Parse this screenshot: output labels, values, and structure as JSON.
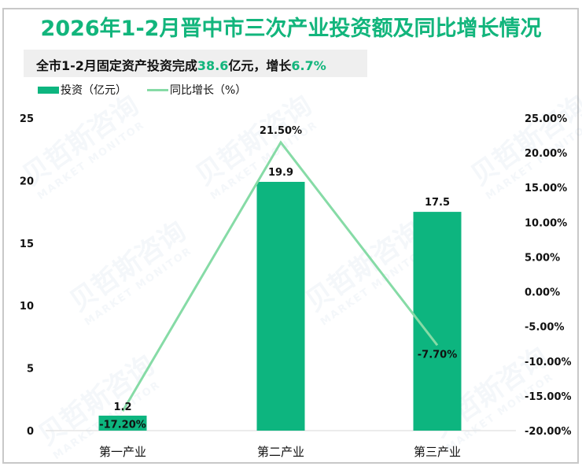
{
  "title": "2026年1-2月晋中市三次产业投资额及同比增长情况",
  "subtitle": {
    "prefix": "全市1-2月固定资产投资完成",
    "value1": "38.6",
    "mid": "亿元，增长",
    "value2": "6.7%"
  },
  "legend": {
    "bar_label": "投资（亿元）",
    "line_label": "同比增长（%）"
  },
  "watermark": {
    "text": "贝哲斯咨询",
    "sub": "MARKET MONITOR"
  },
  "colors": {
    "title": "#12b57c",
    "bar": "#0db57f",
    "line": "#86dba6",
    "highlight": "#12b57c"
  },
  "chart_data": {
    "type": "bar+line",
    "title": "2026年1-2月晋中市三次产业投资额及同比增长情况",
    "categories": [
      "第一产业",
      "第二产业",
      "第三产业"
    ],
    "series": [
      {
        "name": "投资（亿元）",
        "type": "bar",
        "axis": "left",
        "values": [
          1.2,
          19.9,
          17.5
        ],
        "labels": [
          "1.2",
          "19.9",
          "17.5"
        ]
      },
      {
        "name": "同比增长（%）",
        "type": "line",
        "axis": "right",
        "values": [
          -17.2,
          21.5,
          -7.7
        ],
        "labels": [
          "-17.20%",
          "21.50%",
          "-7.70%"
        ]
      }
    ],
    "left_axis": {
      "ticks": [
        "0",
        "5",
        "10",
        "15",
        "20",
        "25"
      ],
      "range": [
        0,
        25
      ]
    },
    "right_axis": {
      "ticks": [
        "-20.00%",
        "-15.00%",
        "-10.00%",
        "-5.00%",
        "0.00%",
        "5.00%",
        "10.00%",
        "15.00%",
        "20.00%",
        "25.00%"
      ],
      "range": [
        -20,
        25
      ]
    },
    "grid": false,
    "legend_position": "top-left"
  }
}
